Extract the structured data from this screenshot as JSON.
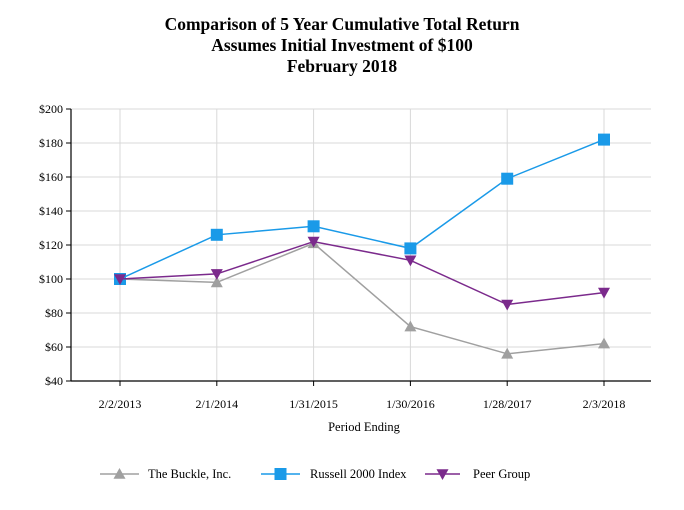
{
  "chart_data": {
    "type": "line",
    "title": [
      "Comparison of 5 Year Cumulative Total Return",
      "Assumes Initial Investment of $100",
      "February 2018"
    ],
    "xlabel": "Period Ending",
    "ylabel": "",
    "categories": [
      "2/2/2013",
      "2/1/2014",
      "1/31/2015",
      "1/30/2016",
      "1/28/2017",
      "2/3/2018"
    ],
    "ylim": [
      40,
      200
    ],
    "yticks": [
      40,
      60,
      80,
      100,
      120,
      140,
      160,
      180,
      200
    ],
    "ytick_labels": [
      "$40",
      "$60",
      "$80",
      "$100",
      "$120",
      "$140",
      "$160",
      "$180",
      "$200"
    ],
    "grid": true,
    "legend": "bottom",
    "series": [
      {
        "name": "The Buckle, Inc.",
        "values": [
          100,
          98,
          121,
          72,
          56,
          62
        ],
        "color": "#a0a0a0",
        "marker": "triangle-up"
      },
      {
        "name": "Russell 2000 Index",
        "values": [
          100,
          126,
          131,
          118,
          159,
          182
        ],
        "color": "#1a9ae8",
        "marker": "square"
      },
      {
        "name": "Peer Group",
        "values": [
          100,
          103,
          122,
          111,
          85,
          92
        ],
        "color": "#7b2a8c",
        "marker": "triangle-down"
      }
    ]
  }
}
